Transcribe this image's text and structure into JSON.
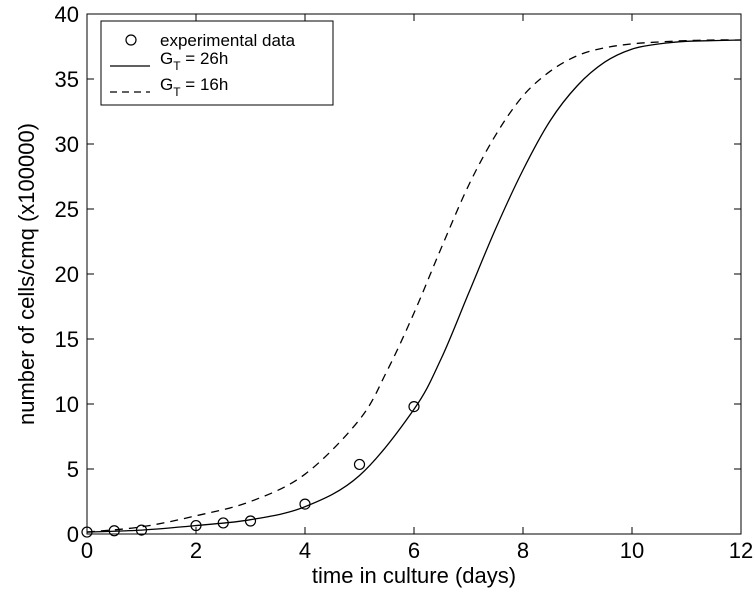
{
  "chart_data": {
    "type": "line",
    "xlabel": "time in culture (days)",
    "ylabel": "number of cells/cmq (x100000)",
    "xlim": [
      0,
      12
    ],
    "ylim": [
      0,
      40
    ],
    "xticks": [
      0,
      2,
      4,
      6,
      8,
      10,
      12
    ],
    "yticks": [
      0,
      5,
      10,
      15,
      20,
      25,
      30,
      35,
      40
    ],
    "grid": false,
    "legend_position": "top-left",
    "series": [
      {
        "name": "experimental data",
        "style": "markers-circle",
        "x": [
          0,
          0.5,
          1,
          2,
          2.5,
          3,
          4,
          5,
          6
        ],
        "y": [
          0.15,
          0.25,
          0.3,
          0.65,
          0.85,
          1.0,
          2.3,
          5.35,
          9.8
        ]
      },
      {
        "name": "G_T = 26h",
        "legend_main": "G",
        "legend_sub": "T",
        "legend_rest": " = 26h",
        "style": "solid",
        "x": [
          0,
          1,
          2,
          3,
          4,
          5,
          6,
          6.5,
          7,
          7.5,
          8,
          8.5,
          9,
          9.5,
          10,
          10.5,
          11,
          11.5,
          12
        ],
        "y": [
          0.15,
          0.3,
          0.65,
          1.1,
          2.1,
          4.5,
          9.6,
          13.5,
          18.5,
          23.5,
          28.0,
          31.8,
          34.5,
          36.3,
          37.3,
          37.7,
          37.9,
          37.95,
          38.0
        ]
      },
      {
        "name": "G_T = 16h",
        "legend_main": "G",
        "legend_sub": "T",
        "legend_rest": " = 16h",
        "style": "dashed",
        "x": [
          0,
          1,
          2,
          3,
          4,
          5,
          5.5,
          6,
          6.5,
          7,
          7.5,
          8,
          8.5,
          9,
          9.5,
          10,
          10.5,
          11,
          11.5,
          12
        ],
        "y": [
          0.15,
          0.55,
          1.4,
          2.5,
          4.6,
          8.8,
          12.5,
          17.0,
          22.0,
          26.8,
          30.7,
          33.7,
          35.6,
          36.8,
          37.4,
          37.7,
          37.85,
          37.95,
          38.0,
          38.0
        ]
      }
    ]
  }
}
